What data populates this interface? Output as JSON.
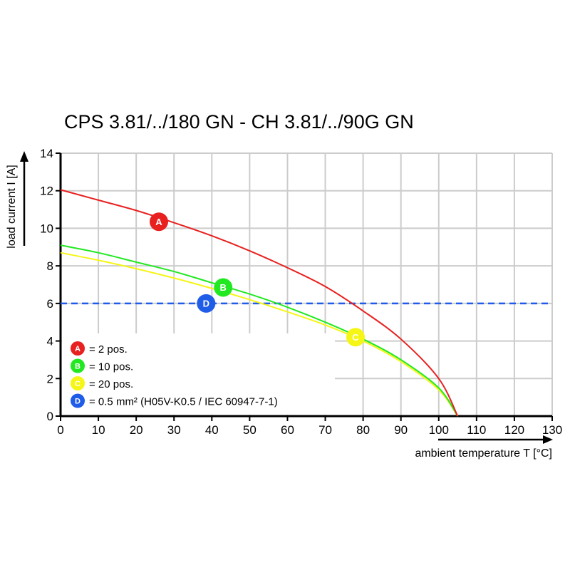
{
  "chart_data": {
    "type": "line",
    "title": "CPS 3.81/../180 GN - CH 3.81/../90G GN",
    "xlabel": "ambient temperature T [°C]",
    "ylabel": "load current I [A]",
    "xlim": [
      0,
      130
    ],
    "ylim": [
      0,
      14
    ],
    "xticks": [
      "0",
      "10",
      "20",
      "30",
      "40",
      "50",
      "60",
      "70",
      "80",
      "90",
      "100",
      "110",
      "120",
      "130"
    ],
    "yticks": [
      "0",
      "2",
      "4",
      "6",
      "8",
      "10",
      "12",
      "14"
    ],
    "grid": true,
    "x": [
      0,
      10,
      20,
      30,
      40,
      50,
      60,
      70,
      80,
      90,
      100,
      105
    ],
    "series": [
      {
        "name": "A",
        "label": "= 2 pos.",
        "color": "#e82020",
        "values": [
          12.05,
          11.5,
          10.95,
          10.3,
          9.6,
          8.8,
          7.9,
          6.9,
          5.6,
          4.1,
          2.0,
          0
        ],
        "marker": [
          26,
          10.35
        ]
      },
      {
        "name": "B",
        "label": "= 10 pos.",
        "color": "#22e822",
        "values": [
          9.1,
          8.7,
          8.2,
          7.7,
          7.1,
          6.5,
          5.8,
          5.0,
          4.1,
          3.0,
          1.5,
          0
        ],
        "marker": [
          43,
          6.85
        ]
      },
      {
        "name": "C",
        "label": "= 20 pos.",
        "color": "#f5f516",
        "values": [
          8.7,
          8.3,
          7.85,
          7.35,
          6.8,
          6.2,
          5.55,
          4.85,
          4.0,
          2.9,
          1.4,
          0
        ],
        "marker": [
          78,
          4.2
        ]
      }
    ],
    "reference_line": {
      "name": "D",
      "label": "= 0.5 mm² (H05V-K0.5 / IEC 60947-7-1)",
      "color": "#1f5ce8",
      "value": 6,
      "marker": [
        38.5,
        6
      ],
      "style": "dashed"
    },
    "legend_placement": "bottom-left"
  }
}
